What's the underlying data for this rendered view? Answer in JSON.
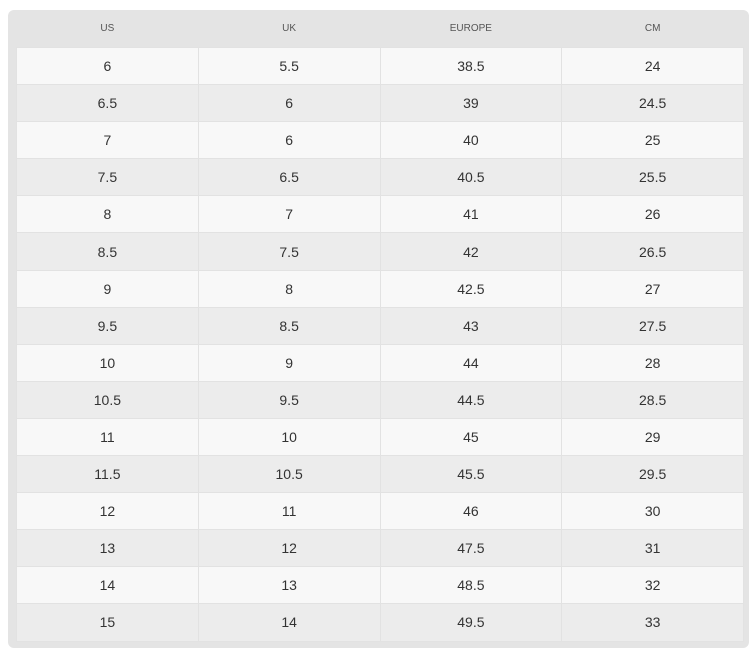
{
  "table": {
    "headers": [
      "US",
      "UK",
      "EUROPE",
      "CM"
    ],
    "rows": [
      [
        "6",
        "5.5",
        "38.5",
        "24"
      ],
      [
        "6.5",
        "6",
        "39",
        "24.5"
      ],
      [
        "7",
        "6",
        "40",
        "25"
      ],
      [
        "7.5",
        "6.5",
        "40.5",
        "25.5"
      ],
      [
        "8",
        "7",
        "41",
        "26"
      ],
      [
        "8.5",
        "7.5",
        "42",
        "26.5"
      ],
      [
        "9",
        "8",
        "42.5",
        "27"
      ],
      [
        "9.5",
        "8.5",
        "43",
        "27.5"
      ],
      [
        "10",
        "9",
        "44",
        "28"
      ],
      [
        "10.5",
        "9.5",
        "44.5",
        "28.5"
      ],
      [
        "11",
        "10",
        "45",
        "29"
      ],
      [
        "11.5",
        "10.5",
        "45.5",
        "29.5"
      ],
      [
        "12",
        "11",
        "46",
        "30"
      ],
      [
        "13",
        "12",
        "47.5",
        "31"
      ],
      [
        "14",
        "13",
        "48.5",
        "32"
      ],
      [
        "15",
        "14",
        "49.5",
        "33"
      ]
    ]
  }
}
